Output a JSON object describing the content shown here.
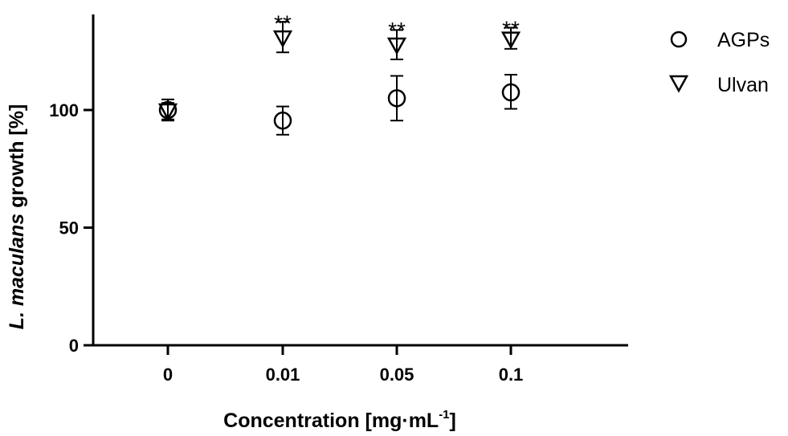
{
  "chart_data": {
    "type": "scatter",
    "categories": [
      "0",
      "0.01",
      "0.05",
      "0.1"
    ],
    "y_ticks": [
      "0",
      "50",
      "100"
    ],
    "ylim": [
      0,
      140
    ],
    "grid": false,
    "legend_position": "top-right",
    "ylabel": {
      "italic": "L. maculans",
      "rest": " growth [%]"
    },
    "xlabel": {
      "main": "Concentration [mg",
      "dot": "·",
      "unit": "mL",
      "sup": "-1",
      "close": "]"
    },
    "series": [
      {
        "name": "AGPs",
        "marker": "circle",
        "values": [
          100,
          95.5,
          105,
          107.5
        ],
        "err_low": [
          95.5,
          89.5,
          95.5,
          100.5
        ],
        "err_high": [
          103,
          101.5,
          114.5,
          115
        ]
      },
      {
        "name": "Ulvan",
        "marker": "triangle-down",
        "values": [
          100,
          131,
          128,
          130.5
        ],
        "err_low": [
          96,
          124.5,
          121.5,
          126
        ],
        "err_high": [
          104.5,
          137.5,
          134,
          135
        ]
      }
    ],
    "annotations": [
      {
        "category": "0.01",
        "text": "**",
        "y": 140.5
      },
      {
        "category": "0.05",
        "text": "**",
        "y": 137.5
      },
      {
        "category": "0.1",
        "text": "**",
        "y": 138
      }
    ]
  }
}
